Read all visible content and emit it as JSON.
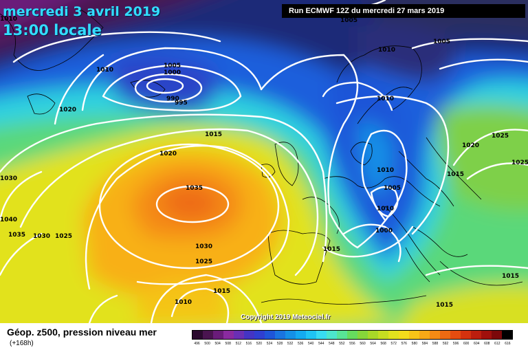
{
  "header": {
    "date": "mercredi 3 avril 2019",
    "time": "13:00 locale",
    "run": "Run ECMWF 12Z du mercredi 27 mars 2019"
  },
  "copyright": "Copyright 2019 Meteociel.fr",
  "legend": {
    "title": "Géop. z500, pression niveau mer",
    "subtitle": "(+168h)",
    "scale_labels": [
      "496",
      "500",
      "504",
      "508",
      "512",
      "516",
      "520",
      "524",
      "528",
      "532",
      "536",
      "540",
      "544",
      "548",
      "552",
      "556",
      "560",
      "564",
      "568",
      "572",
      "576",
      "580",
      "584",
      "588",
      "592",
      "596",
      "600",
      "604",
      "608",
      "612",
      "616"
    ],
    "scale_colors": [
      "#2a0a2e",
      "#4a1450",
      "#6a1c7a",
      "#8a2aa0",
      "#6a2fb4",
      "#4434c4",
      "#2f3fd0",
      "#1f55d8",
      "#1a74e0",
      "#1590e6",
      "#14aaf0",
      "#1fc4f4",
      "#38dcf2",
      "#4ce6cc",
      "#58e496",
      "#66dc5e",
      "#86d63a",
      "#a8d828",
      "#c6de22",
      "#e2e21e",
      "#f4dc1c",
      "#f8c418",
      "#f8a816",
      "#f48a14",
      "#ee6a12",
      "#e64c10",
      "#d4320e",
      "#bc1e0e",
      "#a0100c",
      "#7c080a",
      "#000000"
    ]
  },
  "colors": {
    "title": "#33ddff",
    "isobar": "#ffffff",
    "coast": "#000000"
  },
  "isobar_labels": [
    "1005",
    "1010",
    "1005",
    "1000",
    "990",
    "995",
    "1020",
    "1015",
    "1020",
    "1030",
    "1040",
    "1035",
    "1030",
    "1025",
    "1035",
    "1030",
    "1025",
    "1015",
    "1010",
    "1015",
    "1010",
    "1010",
    "1005",
    "1010",
    "1000",
    "1015",
    "1020",
    "1025",
    "1025",
    "1015",
    "1015",
    "1005",
    "1010",
    "1010"
  ]
}
